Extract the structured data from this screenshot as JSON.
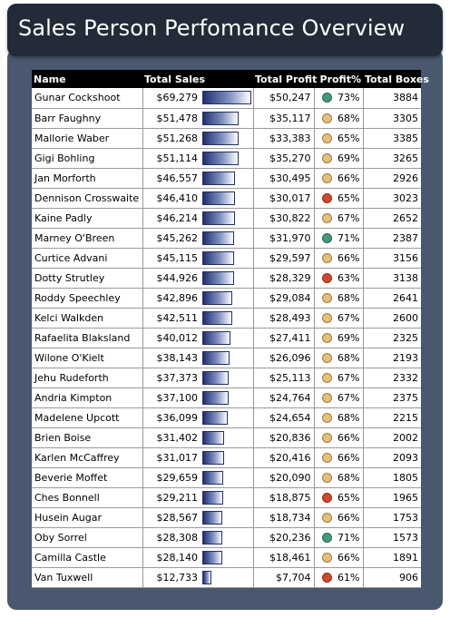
{
  "title": "Sales Person Perfomance Overview",
  "columns": {
    "name": "Name",
    "total_sales": "Total Sales",
    "total_profit": "Total Profit",
    "profit_pct": "Profit%",
    "total_boxes": "Total Boxes"
  },
  "status_colors": {
    "green": "#3f9c7c",
    "yellow": "#e8bf73",
    "red": "#d6472a"
  },
  "bar_scale_max": 69279,
  "rows": [
    {
      "name": "Gunar Cockshoot",
      "sales": "$69,279",
      "sales_value": 69279,
      "profit": "$50,247",
      "pct": "73%",
      "status": "green",
      "boxes": "3884"
    },
    {
      "name": "Barr Faughny",
      "sales": "$51,478",
      "sales_value": 51478,
      "profit": "$35,117",
      "pct": "68%",
      "status": "yellow",
      "boxes": "3305"
    },
    {
      "name": "Mallorie Waber",
      "sales": "$51,268",
      "sales_value": 51268,
      "profit": "$33,383",
      "pct": "65%",
      "status": "yellow",
      "boxes": "3385"
    },
    {
      "name": "Gigi Bohling",
      "sales": "$51,114",
      "sales_value": 51114,
      "profit": "$35,270",
      "pct": "69%",
      "status": "yellow",
      "boxes": "3265"
    },
    {
      "name": "Jan Morforth",
      "sales": "$46,557",
      "sales_value": 46557,
      "profit": "$30,495",
      "pct": "66%",
      "status": "yellow",
      "boxes": "2926"
    },
    {
      "name": "Dennison Crosswaite",
      "sales": "$46,410",
      "sales_value": 46410,
      "profit": "$30,017",
      "pct": "65%",
      "status": "red",
      "boxes": "3023"
    },
    {
      "name": "Kaine Padly",
      "sales": "$46,214",
      "sales_value": 46214,
      "profit": "$30,822",
      "pct": "67%",
      "status": "yellow",
      "boxes": "2652"
    },
    {
      "name": "Marney O'Breen",
      "sales": "$45,262",
      "sales_value": 45262,
      "profit": "$31,970",
      "pct": "71%",
      "status": "green",
      "boxes": "2387"
    },
    {
      "name": "Curtice Advani",
      "sales": "$45,115",
      "sales_value": 45115,
      "profit": "$29,597",
      "pct": "66%",
      "status": "yellow",
      "boxes": "3156"
    },
    {
      "name": "Dotty Strutley",
      "sales": "$44,926",
      "sales_value": 44926,
      "profit": "$28,329",
      "pct": "63%",
      "status": "red",
      "boxes": "3138"
    },
    {
      "name": "Roddy Speechley",
      "sales": "$42,896",
      "sales_value": 42896,
      "profit": "$29,084",
      "pct": "68%",
      "status": "yellow",
      "boxes": "2641"
    },
    {
      "name": "Kelci Walkden",
      "sales": "$42,511",
      "sales_value": 42511,
      "profit": "$28,493",
      "pct": "67%",
      "status": "yellow",
      "boxes": "2600"
    },
    {
      "name": "Rafaelita Blaksland",
      "sales": "$40,012",
      "sales_value": 40012,
      "profit": "$27,411",
      "pct": "69%",
      "status": "yellow",
      "boxes": "2325"
    },
    {
      "name": "Wilone O'Kielt",
      "sales": "$38,143",
      "sales_value": 38143,
      "profit": "$26,096",
      "pct": "68%",
      "status": "yellow",
      "boxes": "2193"
    },
    {
      "name": "Jehu Rudeforth",
      "sales": "$37,373",
      "sales_value": 37373,
      "profit": "$25,113",
      "pct": "67%",
      "status": "yellow",
      "boxes": "2332"
    },
    {
      "name": "Andria Kimpton",
      "sales": "$37,100",
      "sales_value": 37100,
      "profit": "$24,764",
      "pct": "67%",
      "status": "yellow",
      "boxes": "2375"
    },
    {
      "name": "Madelene Upcott",
      "sales": "$36,099",
      "sales_value": 36099,
      "profit": "$24,654",
      "pct": "68%",
      "status": "yellow",
      "boxes": "2215"
    },
    {
      "name": "Brien Boise",
      "sales": "$31,402",
      "sales_value": 31402,
      "profit": "$20,836",
      "pct": "66%",
      "status": "yellow",
      "boxes": "2002"
    },
    {
      "name": "Karlen McCaffrey",
      "sales": "$31,017",
      "sales_value": 31017,
      "profit": "$20,416",
      "pct": "66%",
      "status": "yellow",
      "boxes": "2093"
    },
    {
      "name": "Beverie Moffet",
      "sales": "$29,659",
      "sales_value": 29659,
      "profit": "$20,090",
      "pct": "68%",
      "status": "yellow",
      "boxes": "1805"
    },
    {
      "name": "Ches Bonnell",
      "sales": "$29,211",
      "sales_value": 29211,
      "profit": "$18,875",
      "pct": "65%",
      "status": "red",
      "boxes": "1965"
    },
    {
      "name": "Husein Augar",
      "sales": "$28,567",
      "sales_value": 28567,
      "profit": "$18,734",
      "pct": "66%",
      "status": "yellow",
      "boxes": "1753"
    },
    {
      "name": "Oby Sorrel",
      "sales": "$28,308",
      "sales_value": 28308,
      "profit": "$20,236",
      "pct": "71%",
      "status": "green",
      "boxes": "1573"
    },
    {
      "name": "Camilla Castle",
      "sales": "$28,140",
      "sales_value": 28140,
      "profit": "$18,461",
      "pct": "66%",
      "status": "yellow",
      "boxes": "1891"
    },
    {
      "name": "Van Tuxwell",
      "sales": "$12,733",
      "sales_value": 12733,
      "profit": "$7,704",
      "pct": "61%",
      "status": "red",
      "boxes": "906"
    }
  ]
}
